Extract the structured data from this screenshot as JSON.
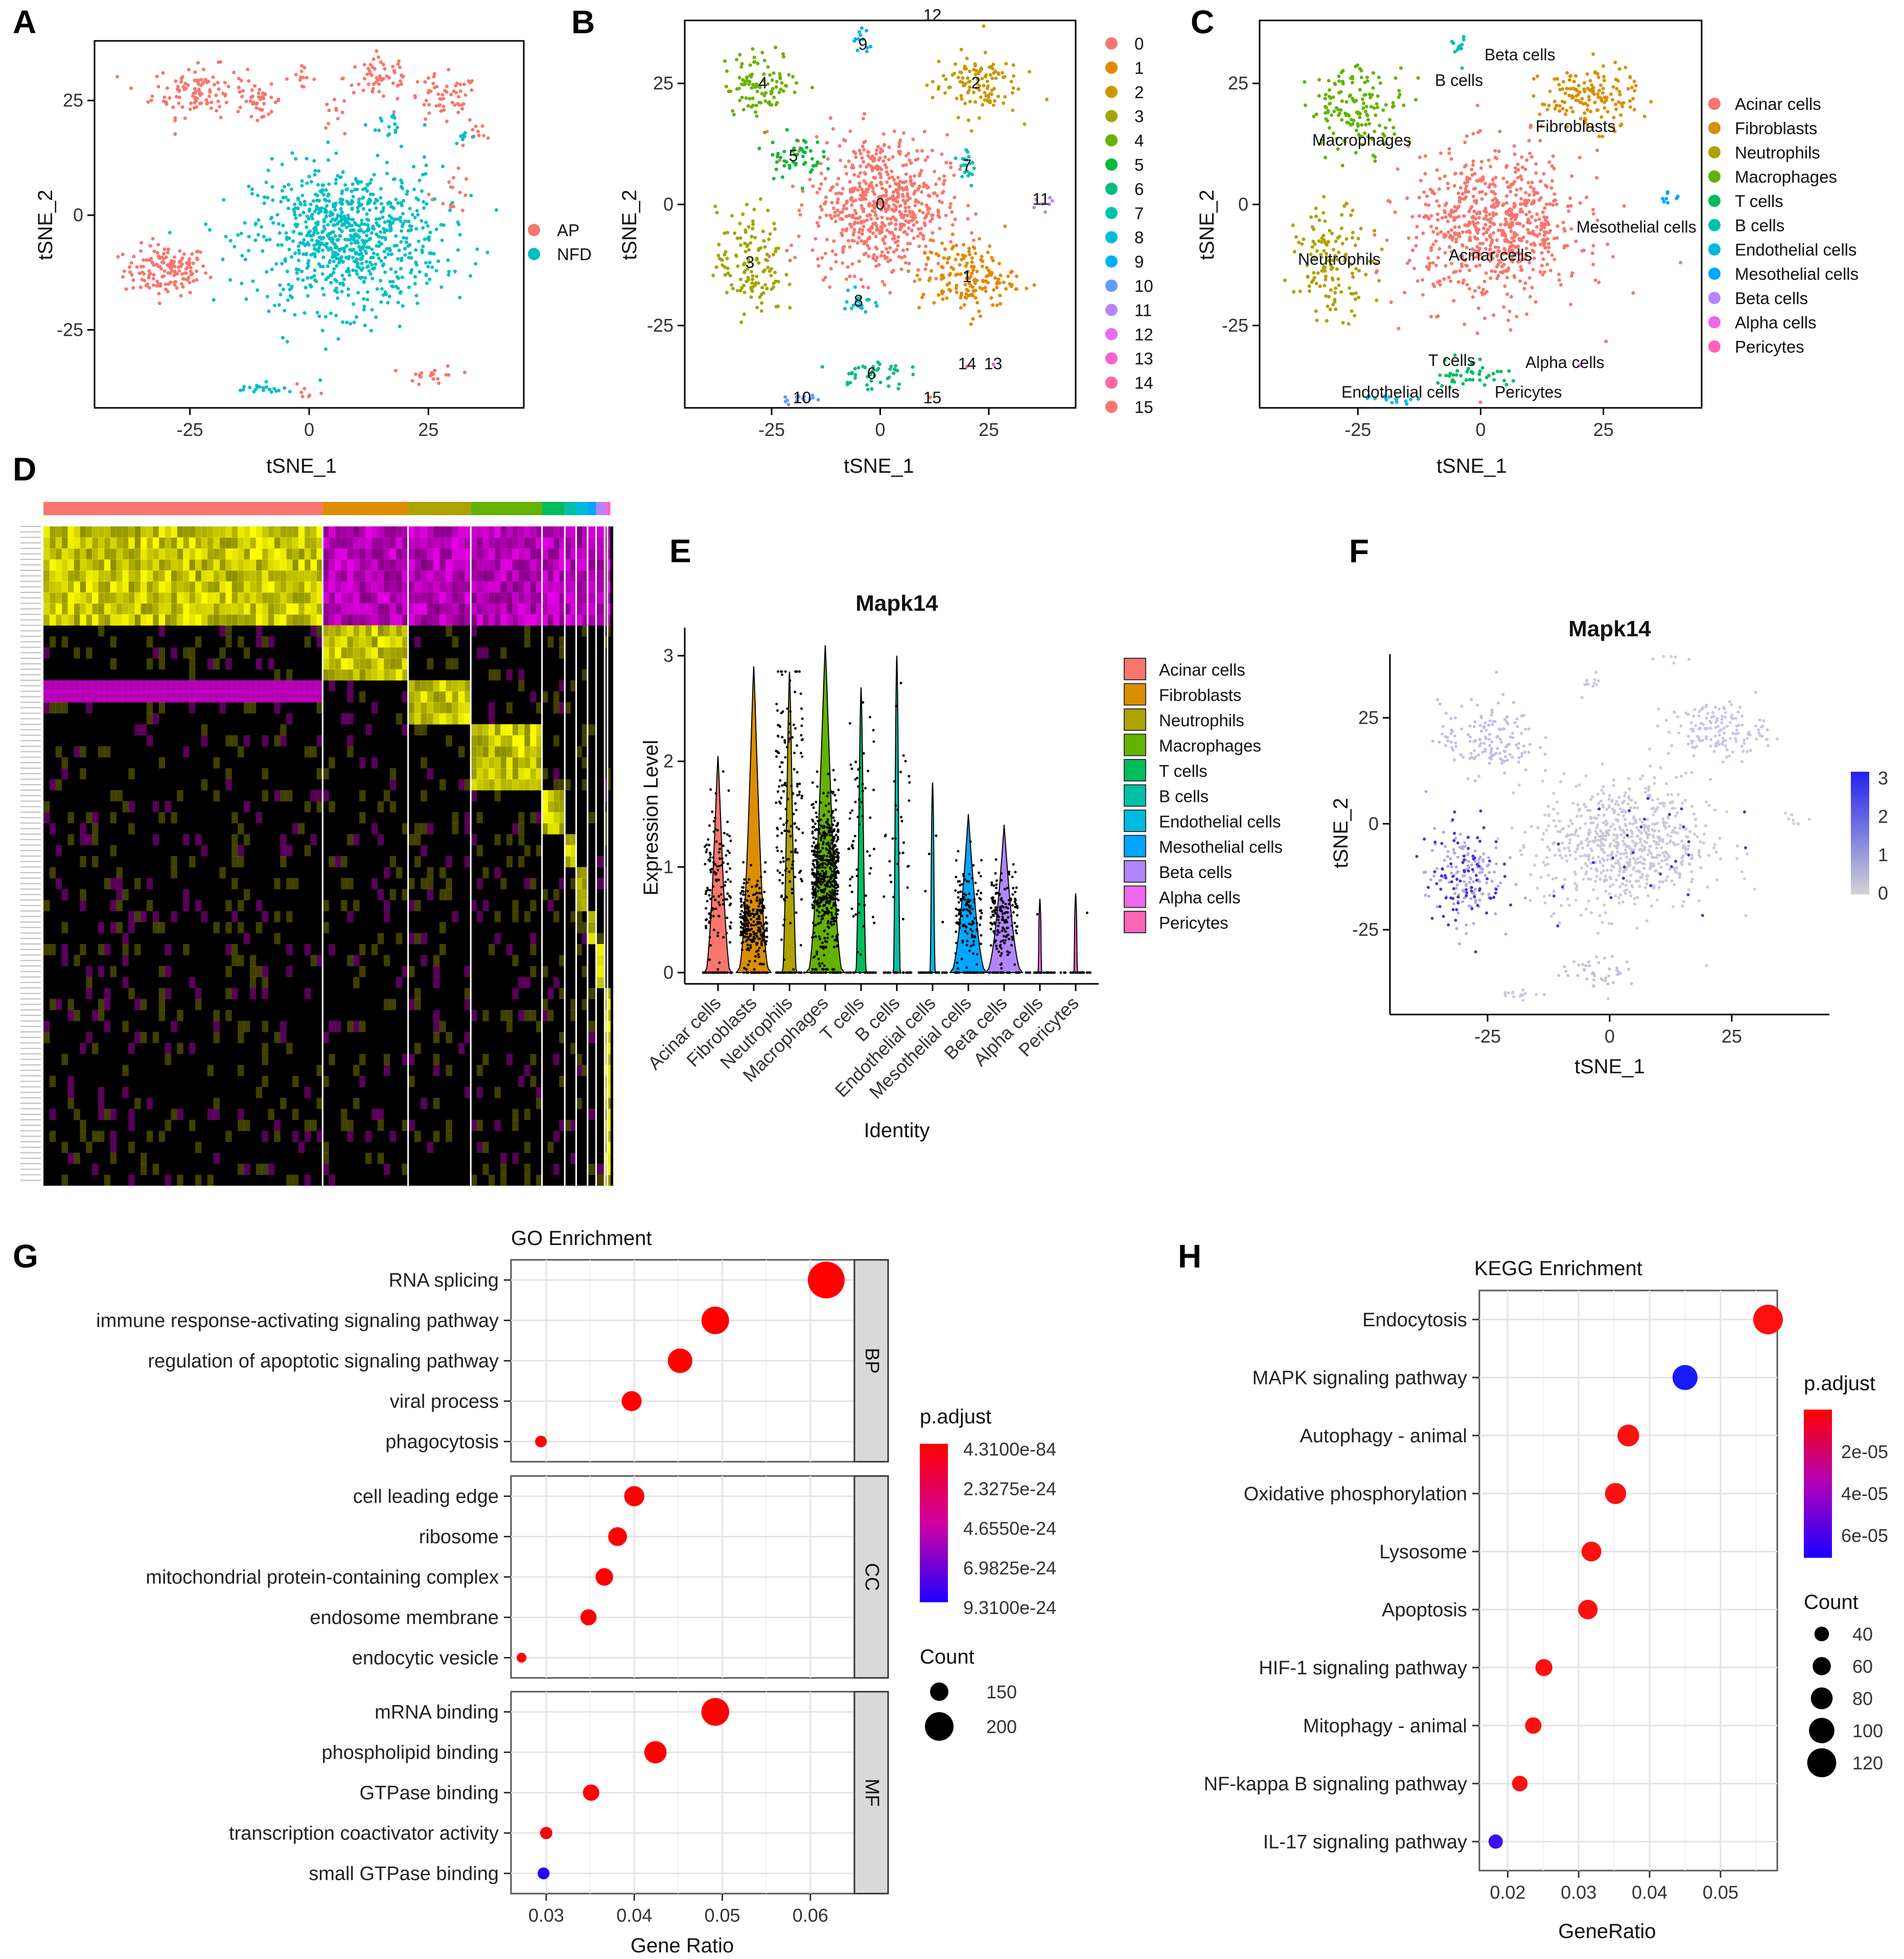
{
  "panel_labels": {
    "A": "A",
    "B": "B",
    "C": "C",
    "D": "D",
    "E": "E",
    "F": "F",
    "G": "G",
    "H": "H"
  },
  "colors": {
    "AP": "#F8766D",
    "NFD": "#00BFC4",
    "cluster_colors": [
      "#F8766D",
      "#E58700",
      "#C99800",
      "#A3A500",
      "#6BB100",
      "#00BA38",
      "#00BF7D",
      "#00C0AF",
      "#00BCD8",
      "#00B0F6",
      "#619CFF",
      "#B983FF",
      "#E76BF3",
      "#FD61D1",
      "#FF67A4",
      "#F8766D"
    ],
    "celltype_colors": [
      "#F8766D",
      "#DB8E00",
      "#AEA200",
      "#64B200",
      "#00BD5C",
      "#00C1A7",
      "#00BADE",
      "#00A6FF",
      "#B385FF",
      "#EF67EB",
      "#FF63B6"
    ],
    "padj_high": "#FF0000",
    "padj_low": "#0000FF"
  },
  "tsne_common": {
    "xlabel": "tSNE_1",
    "ylabel": "tSNE_2",
    "xticks": [
      -25,
      0,
      25
    ],
    "yticks": [
      -25,
      0,
      25
    ]
  },
  "panelA": {
    "legend": [
      "AP",
      "NFD"
    ]
  },
  "panelB": {
    "legend": [
      "0",
      "1",
      "2",
      "3",
      "4",
      "5",
      "6",
      "7",
      "8",
      "9",
      "10",
      "11",
      "12",
      "13",
      "14",
      "15"
    ]
  },
  "panelC": {
    "legend": [
      "Acinar cells",
      "Fibroblasts",
      "Neutrophils",
      "Macrophages",
      "T cells",
      "B cells",
      "Endothelial cells",
      "Mesothelial cells",
      "Beta cells",
      "Alpha cells",
      "Pericytes"
    ],
    "on_plot_labels": [
      "Beta cells",
      "B cells",
      "Macrophages",
      "Fibroblasts",
      "Mesothelial cells",
      "Neutrophils",
      "Acinar cells",
      "T cells",
      "Alpha cells",
      "Endothelial cells",
      "Pericytes"
    ]
  },
  "panelE": {
    "title": "Mapk14",
    "xlabel": "Identity",
    "ylabel": "Expression Level",
    "yticks": [
      "0",
      "1",
      "2",
      "3"
    ]
  },
  "panelF": {
    "title": "Mapk14",
    "legend_ticks": [
      "3",
      "2",
      "1",
      "0"
    ]
  },
  "chart_data": [
    {
      "type": "scatter",
      "panel": "A",
      "title": "",
      "xlabel": "tSNE_1",
      "ylabel": "tSNE_2",
      "xlim": [
        -45,
        45
      ],
      "ylim": [
        -42,
        38
      ],
      "groups": [
        {
          "name": "AP",
          "clusters": [
            [
              -30,
              -12,
              8,
              5,
              900
            ],
            [
              -23,
              27,
              9,
              5,
              700
            ],
            [
              -10,
              25,
              4,
              3,
              200
            ],
            [
              -2,
              30,
              3,
              2,
              80
            ],
            [
              5,
              22,
              2,
              3,
              60
            ],
            [
              15,
              30,
              7,
              5,
              350
            ],
            [
              28,
              25,
              7,
              5,
              350
            ],
            [
              36,
              18,
              3,
              2,
              60
            ],
            [
              26,
              -35,
              5,
              2,
              120
            ],
            [
              0,
              -38,
              3,
              2,
              40
            ],
            [
              30,
              5,
              4,
              4,
              90
            ]
          ]
        },
        {
          "name": "NFD",
          "clusters": [
            [
              8,
              -5,
              18,
              14,
              5000
            ],
            [
              -10,
              -38,
              6,
              1.2,
              120
            ],
            [
              18,
              20,
              5,
              3,
              90
            ],
            [
              32,
              17,
              2,
              2,
              40
            ]
          ]
        }
      ]
    },
    {
      "type": "scatter",
      "panel": "B",
      "xlabel": "tSNE_1",
      "ylabel": "tSNE_2",
      "xlim": [
        -45,
        45
      ],
      "ylim": [
        -42,
        38
      ],
      "clusters": [
        {
          "id": "0",
          "center": [
            0,
            0
          ],
          "spread": [
            14,
            13
          ],
          "n": 3800
        },
        {
          "id": "1",
          "center": [
            20,
            -15
          ],
          "spread": [
            10,
            7
          ],
          "n": 1000
        },
        {
          "id": "2",
          "center": [
            22,
            25
          ],
          "spread": [
            9,
            6
          ],
          "n": 700
        },
        {
          "id": "3",
          "center": [
            -30,
            -12
          ],
          "spread": [
            7,
            10
          ],
          "n": 800
        },
        {
          "id": "4",
          "center": [
            -27,
            25
          ],
          "spread": [
            8,
            6
          ],
          "n": 600
        },
        {
          "id": "5",
          "center": [
            -20,
            10
          ],
          "spread": [
            6,
            4
          ],
          "n": 300
        },
        {
          "id": "6",
          "center": [
            -2,
            -35
          ],
          "spread": [
            7,
            3
          ],
          "n": 250
        },
        {
          "id": "7",
          "center": [
            20,
            8
          ],
          "spread": [
            2,
            5
          ],
          "n": 120
        },
        {
          "id": "8",
          "center": [
            -5,
            -20
          ],
          "spread": [
            3,
            3
          ],
          "n": 120
        },
        {
          "id": "9",
          "center": [
            -4,
            33
          ],
          "spread": [
            2,
            3
          ],
          "n": 70
        },
        {
          "id": "10",
          "center": [
            -18,
            -40
          ],
          "spread": [
            5,
            1
          ],
          "n": 90
        },
        {
          "id": "11",
          "center": [
            37,
            1
          ],
          "spread": [
            3,
            1.5
          ],
          "n": 50
        },
        {
          "id": "12",
          "center": [
            12,
            39
          ],
          "spread": [
            3,
            1.5
          ],
          "n": 50
        },
        {
          "id": "13",
          "center": [
            26,
            -33
          ],
          "spread": [
            0.5,
            0.5
          ],
          "n": 3
        },
        {
          "id": "14",
          "center": [
            20,
            -33
          ],
          "spread": [
            0.5,
            0.5
          ],
          "n": 4
        },
        {
          "id": "15",
          "center": [
            12,
            -40
          ],
          "spread": [
            0.5,
            0.5
          ],
          "n": 3
        }
      ]
    },
    {
      "type": "scatter",
      "panel": "C",
      "xlabel": "tSNE_1",
      "ylabel": "tSNE_2",
      "xlim": [
        -45,
        45
      ],
      "ylim": [
        -42,
        38
      ],
      "clusters": [
        {
          "name": "Acinar cells",
          "center": [
            3,
            -5
          ],
          "spread": [
            16,
            14
          ],
          "n": 4200
        },
        {
          "name": "Fibroblasts",
          "center": [
            22,
            22
          ],
          "spread": [
            9,
            6
          ],
          "n": 900
        },
        {
          "name": "Neutrophils",
          "center": [
            -30,
            -12
          ],
          "spread": [
            7,
            10
          ],
          "n": 800
        },
        {
          "name": "Macrophages",
          "center": [
            -25,
            20
          ],
          "spread": [
            9,
            8
          ],
          "n": 900
        },
        {
          "name": "T cells",
          "center": [
            -2,
            -35
          ],
          "spread": [
            7,
            3
          ],
          "n": 250
        },
        {
          "name": "B cells",
          "center": [
            -4,
            33
          ],
          "spread": [
            2,
            3
          ],
          "n": 70
        },
        {
          "name": "Endothelial cells",
          "center": [
            -18,
            -40
          ],
          "spread": [
            5,
            1
          ],
          "n": 90
        },
        {
          "name": "Mesothelial cells",
          "center": [
            38,
            1
          ],
          "spread": [
            3,
            1.5
          ],
          "n": 50
        },
        {
          "name": "Beta cells",
          "center": [
            12,
            39
          ],
          "spread": [
            3,
            1.5
          ],
          "n": 50
        },
        {
          "name": "Alpha cells",
          "center": [
            20,
            -33
          ],
          "spread": [
            0.5,
            0.5
          ],
          "n": 4
        },
        {
          "name": "Pericytes",
          "center": [
            0,
            -41
          ],
          "spread": [
            0.5,
            0.5
          ],
          "n": 3
        }
      ]
    },
    {
      "type": "heatmap",
      "panel": "D",
      "title": "",
      "rows": 60,
      "column_groups": [
        {
          "name": "Acinar cells",
          "fraction": 0.49
        },
        {
          "name": "Fibroblasts",
          "fraction": 0.15
        },
        {
          "name": "Neutrophils",
          "fraction": 0.11
        },
        {
          "name": "Macrophages",
          "fraction": 0.125
        },
        {
          "name": "T cells",
          "fraction": 0.04
        },
        {
          "name": "B cells",
          "fraction": 0.02
        },
        {
          "name": "Endothelial cells",
          "fraction": 0.02
        },
        {
          "name": "Mesothelial cells",
          "fraction": 0.015
        },
        {
          "name": "Beta cells",
          "fraction": 0.015
        },
        {
          "name": "Alpha cells",
          "fraction": 0.005
        },
        {
          "name": "Pericytes",
          "fraction": 0.005
        }
      ],
      "colors": {
        "low": "#FF00FF",
        "mid": "#000000",
        "high": "#FFFF00"
      }
    },
    {
      "type": "violin",
      "panel": "E",
      "title": "Mapk14",
      "xlabel": "Identity",
      "ylabel": "Expression Level",
      "ylim": [
        0,
        3.2
      ],
      "categories": [
        "Acinar cells",
        "Fibroblasts",
        "Neutrophils",
        "Macrophages",
        "T cells",
        "B cells",
        "Endothelial cells",
        "Mesothelial cells",
        "Beta cells",
        "Alpha cells",
        "Pericytes"
      ],
      "max": [
        2.05,
        2.9,
        2.85,
        3.1,
        2.7,
        3.0,
        1.8,
        1.5,
        1.4,
        0.7,
        0.75
      ],
      "nonzero_mean": [
        0.9,
        0.5,
        1.6,
        0.9,
        1.3,
        1.5,
        0.8,
        0.6,
        0.55,
        0.6,
        0.7
      ],
      "nonzero_count": [
        250,
        500,
        300,
        1100,
        120,
        60,
        8,
        250,
        300,
        2,
        2
      ]
    },
    {
      "type": "scatter",
      "panel": "F",
      "title": "Mapk14",
      "xlabel": "tSNE_1",
      "ylabel": "tSNE_2",
      "xlim": [
        -45,
        45
      ],
      "ylim": [
        -45,
        40
      ],
      "colorbar": {
        "min": 0,
        "max": 3,
        "ticks": [
          0,
          1,
          2,
          3
        ]
      }
    },
    {
      "type": "scatter",
      "panel": "G",
      "title": "GO Enrichment",
      "xlabel": "Gene Ratio",
      "xlim": [
        0.026,
        0.065
      ],
      "xticks": [
        0.03,
        0.04,
        0.05,
        0.06
      ],
      "legend_color_title": "p.adjust",
      "legend_color_ticks": [
        "4.3100e-84",
        "2.3275e-24",
        "4.6550e-24",
        "6.9825e-24",
        "9.3100e-24"
      ],
      "legend_size_title": "Count",
      "legend_size_ticks": [
        "150",
        "200"
      ],
      "facets": [
        {
          "strip": "BP",
          "terms": [
            {
              "term": "RNA splicing",
              "ratio": 0.0618,
              "count": 240,
              "padj": 0
            },
            {
              "term": "immune response-activating signaling pathway",
              "ratio": 0.0492,
              "count": 195,
              "padj": 0
            },
            {
              "term": "regulation of apoptotic signaling pathway",
              "ratio": 0.0452,
              "count": 180,
              "padj": 0
            },
            {
              "term": "viral process",
              "ratio": 0.0397,
              "count": 158,
              "padj": 0
            },
            {
              "term": "phagocytosis",
              "ratio": 0.0294,
              "count": 117,
              "padj": 0
            }
          ]
        },
        {
          "strip": "CC",
          "terms": [
            {
              "term": "cell leading edge",
              "ratio": 0.04,
              "count": 159,
              "padj": 0
            },
            {
              "term": "ribosome",
              "ratio": 0.0381,
              "count": 152,
              "padj": 0
            },
            {
              "term": "mitochondrial protein-containing complex",
              "ratio": 0.0366,
              "count": 146,
              "padj": 0
            },
            {
              "term": "endosome membrane",
              "ratio": 0.0348,
              "count": 139,
              "padj": 0
            },
            {
              "term": "endocytic vesicle",
              "ratio": 0.0272,
              "count": 108,
              "padj": 0
            }
          ]
        },
        {
          "strip": "MF",
          "terms": [
            {
              "term": "mRNA binding",
              "ratio": 0.0492,
              "count": 196,
              "padj": 0
            },
            {
              "term": "phospholipid binding",
              "ratio": 0.0424,
              "count": 169,
              "padj": 0
            },
            {
              "term": "GTPase binding",
              "ratio": 0.0351,
              "count": 140,
              "padj": 0
            },
            {
              "term": "transcription coactivator activity",
              "ratio": 0.03,
              "count": 120,
              "padj": 0.05
            },
            {
              "term": "small GTPase binding",
              "ratio": 0.0297,
              "count": 118,
              "padj": 1
            }
          ]
        }
      ]
    },
    {
      "type": "scatter",
      "panel": "H",
      "title": "KEGG Enrichment",
      "xlabel": "GeneRatio",
      "xlim": [
        0.016,
        0.058
      ],
      "xticks": [
        0.02,
        0.03,
        0.04,
        0.05
      ],
      "legend_color_title": "p.adjust",
      "legend_color_ticks": [
        "2e-05",
        "4e-05",
        "6e-05"
      ],
      "legend_size_title": "Count",
      "legend_size_ticks": [
        "40",
        "60",
        "80",
        "100",
        "120"
      ],
      "terms": [
        {
          "term": "Endocytosis",
          "ratio": 0.0567,
          "count": 140,
          "padj": 0.05
        },
        {
          "term": "MAPK signaling pathway",
          "ratio": 0.045,
          "count": 112,
          "padj": 0.98
        },
        {
          "term": "Autophagy - animal",
          "ratio": 0.037,
          "count": 92,
          "padj": 0.05
        },
        {
          "term": "Oxidative phosphorylation",
          "ratio": 0.0352,
          "count": 88,
          "padj": 0.05
        },
        {
          "term": "Lysosome",
          "ratio": 0.0318,
          "count": 80,
          "padj": 0.05
        },
        {
          "term": "Apoptosis",
          "ratio": 0.0313,
          "count": 78,
          "padj": 0.05
        },
        {
          "term": "HIF-1 signaling pathway",
          "ratio": 0.0251,
          "count": 63,
          "padj": 0.05
        },
        {
          "term": "Mitophagy - animal",
          "ratio": 0.0236,
          "count": 59,
          "padj": 0.05
        },
        {
          "term": "NF-kappa B signaling pathway",
          "ratio": 0.0217,
          "count": 54,
          "padj": 0.05
        },
        {
          "term": "IL-17 signaling pathway",
          "ratio": 0.0183,
          "count": 46,
          "padj": 0.85
        }
      ]
    }
  ]
}
